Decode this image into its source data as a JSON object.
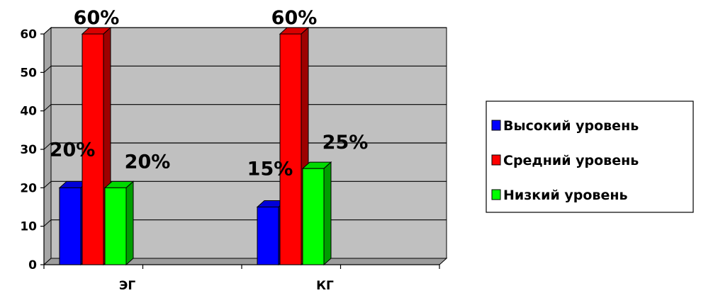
{
  "chart_data": {
    "type": "bar",
    "categories": [
      "ЭГ",
      "КГ"
    ],
    "series": [
      {
        "name": "Высокий уровень",
        "values": [
          20,
          15
        ],
        "labels": [
          "20%",
          "15%"
        ],
        "color": "#0000ff"
      },
      {
        "name": "Средний уровень",
        "values": [
          60,
          60
        ],
        "labels": [
          "60%",
          "60%"
        ],
        "color": "#ff0000"
      },
      {
        "name": "Низкий уровень",
        "values": [
          20,
          25
        ],
        "labels": [
          "20%",
          "25%"
        ],
        "color": "#00ff00"
      }
    ],
    "ylim": [
      0,
      60
    ],
    "yticks": [
      0,
      10,
      20,
      30,
      40,
      50,
      60
    ],
    "grid": true,
    "legend_position": "right",
    "wall_color": "#c0c0c0"
  }
}
